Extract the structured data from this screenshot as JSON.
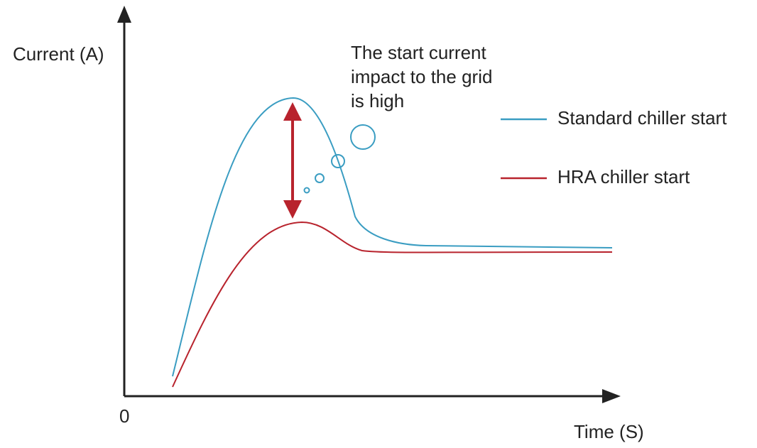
{
  "axes": {
    "y_label": "Current (A)",
    "x_label": "Time (S)",
    "origin": "0"
  },
  "annotation": [
    "The start current",
    "impact to the grid",
    "is high"
  ],
  "legend": [
    {
      "name": "Standard chiller start",
      "color": "#3a9dc2"
    },
    {
      "name": "HRA chiller start",
      "color": "#b8232d"
    }
  ]
}
